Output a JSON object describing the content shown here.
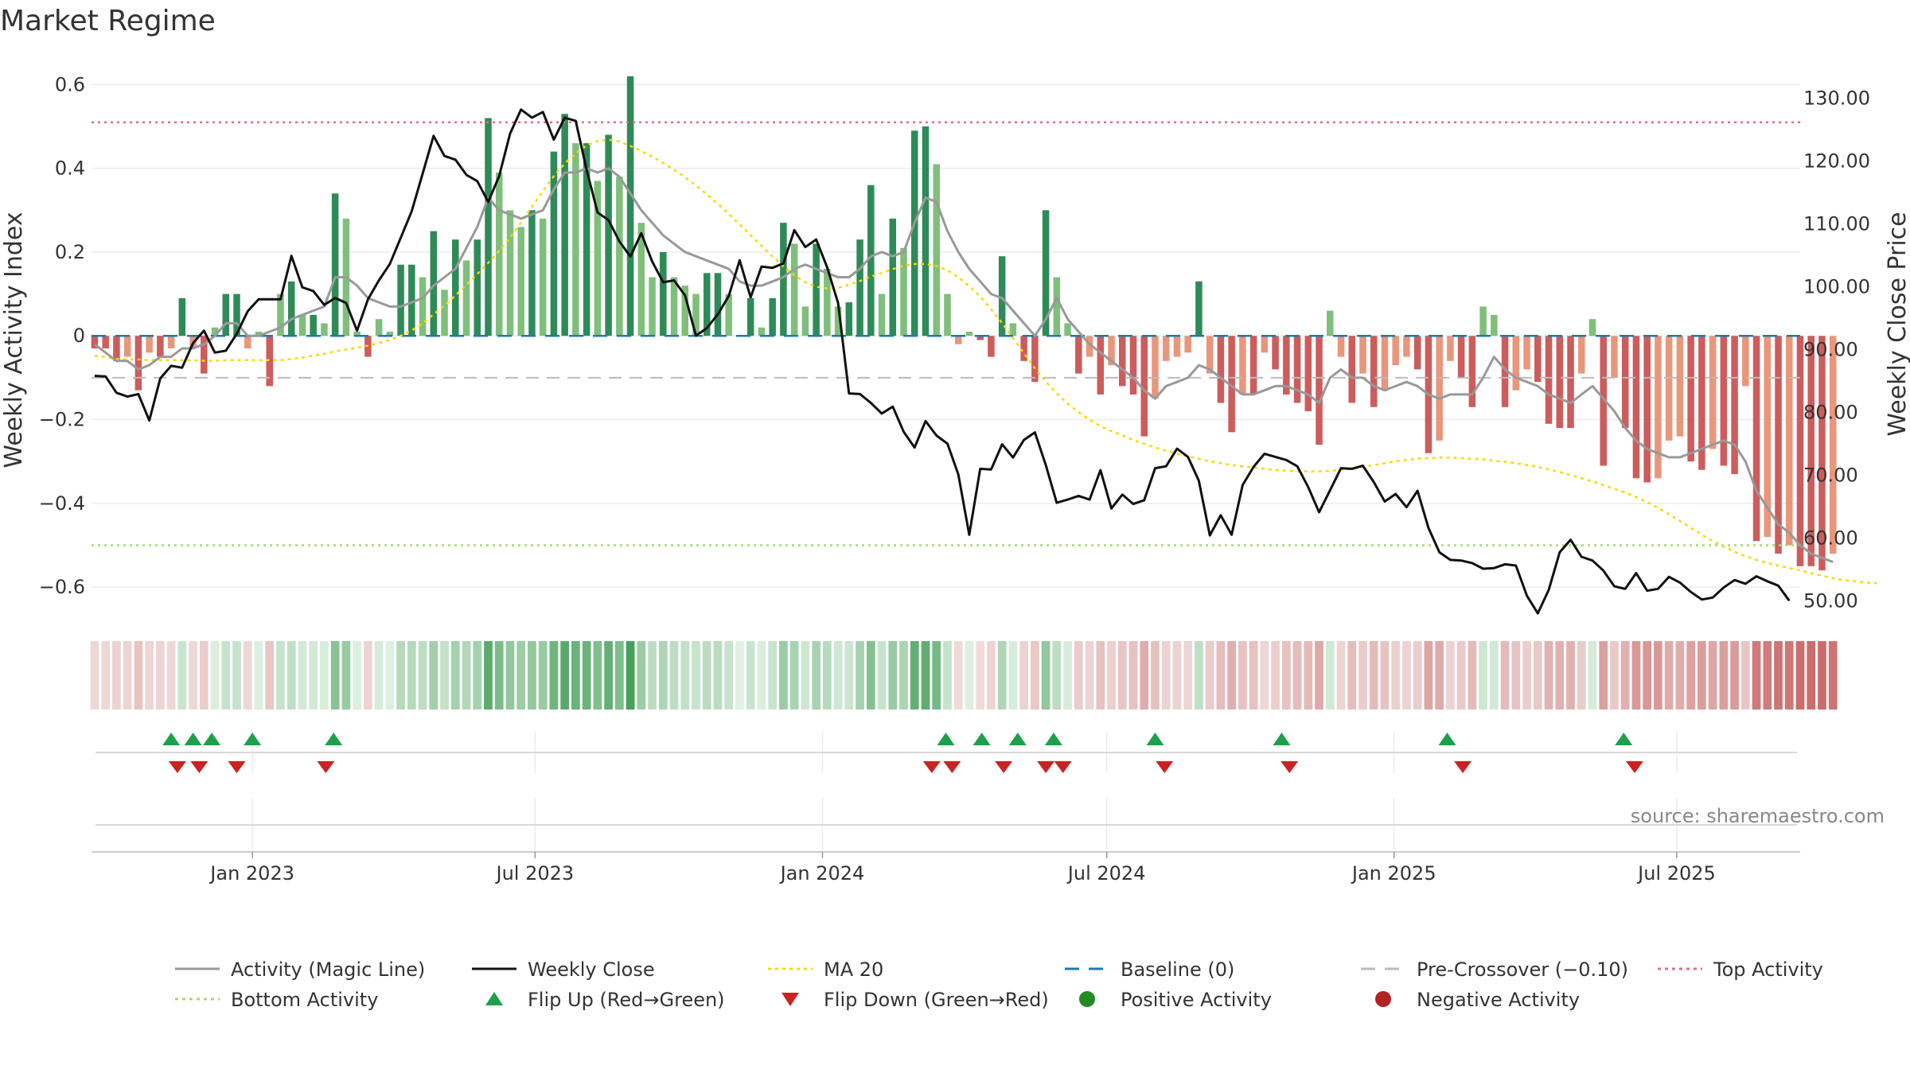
{
  "chart_data": {
    "type": "bar",
    "title": "Market Regime",
    "ylabel_left": "Weekly Activity Index",
    "ylabel_right": "Weekly Close Price",
    "source": "source: sharemaestro.com",
    "ylim_left": [
      -0.67,
      0.65
    ],
    "ylim_right": [
      47.5,
      135.5
    ],
    "yticks_left": [
      0.6,
      0.4,
      0.2,
      0,
      -0.2,
      -0.4,
      -0.6
    ],
    "yticks_left_labels": [
      "0.6",
      "0.4",
      "0.2",
      "0",
      "−0.2",
      "−0.4",
      "−0.6"
    ],
    "yticks_right": [
      130,
      120,
      110,
      100,
      90,
      80,
      70,
      60,
      50
    ],
    "yticks_right_labels": [
      "130.00",
      "120.00",
      "110.00",
      "100.00",
      "90.00",
      "80.00",
      "70.00",
      "60.00",
      "50.00"
    ],
    "xrange": [
      "2022-09-20",
      "2025-09-18"
    ],
    "xticks": [
      {
        "date": "2023-01-01",
        "label": "Jan 2023"
      },
      {
        "date": "2023-07-01",
        "label": "Jul 2023"
      },
      {
        "date": "2024-01-01",
        "label": "Jan 2024"
      },
      {
        "date": "2024-07-01",
        "label": "Jul 2024"
      },
      {
        "date": "2025-01-01",
        "label": "Jan 2025"
      },
      {
        "date": "2025-07-01",
        "label": "Jul 2025"
      }
    ],
    "start_date": "2022-09-22",
    "week_days": 7,
    "activity": [
      -0.03,
      -0.03,
      -0.06,
      -0.05,
      -0.13,
      -0.04,
      -0.05,
      -0.03,
      0.09,
      -0.03,
      -0.09,
      0.02,
      0.1,
      0.1,
      -0.03,
      0.01,
      -0.12,
      0.1,
      0.13,
      0.05,
      0.05,
      0.03,
      0.34,
      0.28,
      0.01,
      -0.05,
      0.04,
      0.01,
      0.17,
      0.17,
      0.14,
      0.25,
      0.11,
      0.23,
      0.18,
      0.23,
      0.52,
      0.39,
      0.3,
      0.26,
      0.3,
      0.28,
      0.44,
      0.53,
      0.46,
      0.46,
      0.37,
      0.48,
      0.38,
      0.62,
      0.27,
      0.14,
      0.2,
      0.14,
      0.12,
      0.1,
      0.15,
      0.15,
      0.1,
      0.0,
      0.09,
      0.02,
      0.09,
      0.27,
      0.22,
      0.07,
      0.22,
      0.16,
      0.07,
      0.08,
      0.23,
      0.36,
      0.1,
      0.28,
      0.21,
      0.49,
      0.5,
      0.41,
      0.1,
      -0.02,
      0.01,
      -0.01,
      -0.05,
      0.19,
      0.03,
      -0.06,
      -0.11,
      0.3,
      0.14,
      0.03,
      -0.09,
      -0.05,
      -0.14,
      -0.07,
      -0.12,
      -0.14,
      -0.24,
      -0.15,
      -0.06,
      -0.05,
      -0.04,
      0.13,
      -0.09,
      -0.16,
      -0.23,
      -0.14,
      -0.14,
      -0.04,
      -0.08,
      -0.14,
      -0.16,
      -0.18,
      -0.26,
      0.06,
      -0.05,
      -0.16,
      -0.09,
      -0.17,
      -0.13,
      -0.07,
      -0.05,
      -0.08,
      -0.28,
      -0.25,
      -0.06,
      -0.1,
      -0.17,
      0.07,
      0.05,
      -0.17,
      -0.13,
      -0.08,
      -0.11,
      -0.21,
      -0.22,
      -0.22,
      -0.09,
      0.04,
      -0.31,
      -0.1,
      -0.22,
      -0.34,
      -0.35,
      -0.34,
      -0.25,
      -0.24,
      -0.3,
      -0.32,
      -0.27,
      -0.31,
      -0.33,
      -0.12,
      -0.49,
      -0.48,
      -0.52,
      -0.5,
      -0.55,
      -0.55,
      -0.56,
      -0.52
    ],
    "magic_line": [
      -0.02,
      -0.04,
      -0.06,
      -0.06,
      -0.08,
      -0.07,
      -0.05,
      -0.05,
      -0.03,
      -0.03,
      -0.02,
      0.0,
      0.03,
      0.03,
      0.0,
      0.0,
      0.01,
      0.02,
      0.04,
      0.05,
      0.06,
      0.07,
      0.14,
      0.14,
      0.12,
      0.09,
      0.08,
      0.07,
      0.07,
      0.08,
      0.09,
      0.12,
      0.14,
      0.16,
      0.21,
      0.26,
      0.33,
      0.3,
      0.29,
      0.28,
      0.29,
      0.3,
      0.35,
      0.39,
      0.39,
      0.4,
      0.39,
      0.4,
      0.38,
      0.34,
      0.3,
      0.27,
      0.24,
      0.22,
      0.2,
      0.19,
      0.18,
      0.17,
      0.16,
      0.13,
      0.12,
      0.12,
      0.13,
      0.14,
      0.16,
      0.17,
      0.16,
      0.15,
      0.14,
      0.14,
      0.16,
      0.19,
      0.2,
      0.19,
      0.2,
      0.27,
      0.33,
      0.32,
      0.25,
      0.2,
      0.16,
      0.13,
      0.1,
      0.09,
      0.06,
      0.03,
      0.0,
      0.04,
      0.09,
      0.04,
      0.01,
      -0.02,
      -0.04,
      -0.06,
      -0.08,
      -0.1,
      -0.13,
      -0.15,
      -0.12,
      -0.11,
      -0.1,
      -0.07,
      -0.08,
      -0.1,
      -0.12,
      -0.14,
      -0.14,
      -0.13,
      -0.12,
      -0.12,
      -0.13,
      -0.14,
      -0.16,
      -0.1,
      -0.08,
      -0.1,
      -0.1,
      -0.12,
      -0.13,
      -0.12,
      -0.11,
      -0.12,
      -0.14,
      -0.15,
      -0.14,
      -0.14,
      -0.14,
      -0.1,
      -0.05,
      -0.08,
      -0.1,
      -0.11,
      -0.12,
      -0.14,
      -0.15,
      -0.16,
      -0.14,
      -0.12,
      -0.15,
      -0.18,
      -0.22,
      -0.25,
      -0.27,
      -0.28,
      -0.29,
      -0.29,
      -0.28,
      -0.27,
      -0.26,
      -0.25,
      -0.26,
      -0.3,
      -0.37,
      -0.41,
      -0.45,
      -0.47,
      -0.5,
      -0.52,
      -0.53,
      -0.54
    ],
    "weekly_close": [
      85.8,
      85.7,
      83.1,
      82.5,
      82.9,
      78.7,
      85.4,
      87.4,
      87.1,
      91.0,
      93.0,
      89.5,
      89.8,
      92.5,
      96.1,
      98.0,
      98.0,
      98.0,
      104.9,
      99.9,
      99.3,
      97.1,
      98.2,
      97.4,
      93.0,
      98.0,
      101.0,
      103.6,
      107.8,
      112.0,
      118.0,
      124.0,
      120.8,
      120.2,
      117.8,
      116.8,
      113.5,
      117.6,
      124.4,
      128.2,
      126.9,
      127.8,
      123.4,
      126.9,
      126.4,
      118.6,
      111.8,
      110.6,
      107.2,
      104.8,
      108.5,
      104.0,
      100.7,
      101.0,
      98.6,
      92.2,
      93.4,
      95.6,
      98.5,
      104.2,
      98.3,
      103.2,
      103.0,
      103.7,
      109.0,
      106.3,
      107.5,
      103.1,
      97.4,
      83.0,
      82.9,
      81.5,
      79.8,
      80.9,
      76.9,
      74.4,
      78.6,
      76.3,
      75.0,
      70.1,
      60.5,
      71.0,
      70.9,
      74.9,
      72.8,
      75.6,
      76.8,
      71.6,
      65.6,
      66.1,
      66.7,
      66.1,
      70.8,
      64.7,
      66.9,
      65.4,
      66.0,
      71.1,
      71.4,
      74.2,
      72.9,
      69.1,
      60.4,
      63.6,
      60.5,
      68.4,
      71.3,
      73.4,
      72.9,
      72.4,
      71.4,
      68.1,
      64.1,
      67.6,
      71.1,
      71.0,
      71.5,
      68.9,
      65.8,
      67.0,
      64.9,
      67.5,
      61.6,
      57.7,
      56.5,
      56.4,
      56.0,
      55.1,
      55.2,
      55.8,
      55.6,
      50.8,
      48.0,
      51.7,
      57.7,
      59.7,
      57.0,
      56.4,
      54.8,
      52.3,
      51.9,
      54.4,
      51.6,
      51.9,
      53.8,
      52.9,
      51.4,
      50.2,
      50.5,
      52.1,
      53.3,
      52.7,
      53.9,
      53.1,
      52.4,
      50.0
    ],
    "ma20": [
      89.0,
      88.8,
      88.5,
      88.4,
      88.4,
      88.3,
      88.3,
      88.3,
      88.3,
      88.3,
      88.2,
      88.2,
      88.3,
      88.3,
      88.3,
      88.3,
      88.3,
      88.3,
      88.5,
      88.7,
      89.0,
      89.3,
      89.7,
      90.0,
      90.3,
      90.6,
      91.0,
      91.5,
      92.2,
      93.0,
      94.2,
      95.6,
      97.0,
      98.6,
      100.3,
      102.0,
      103.8,
      105.7,
      107.8,
      110.2,
      112.7,
      115.2,
      117.6,
      119.6,
      121.2,
      122.5,
      123.2,
      123.4,
      123.1,
      122.4,
      121.6,
      120.7,
      119.7,
      118.6,
      117.4,
      116.1,
      114.7,
      113.2,
      111.6,
      109.9,
      108.2,
      106.5,
      104.8,
      103.2,
      101.8,
      100.7,
      100.0,
      99.7,
      99.8,
      100.3,
      100.9,
      101.6,
      102.2,
      102.8,
      103.3,
      103.6,
      103.6,
      103.3,
      102.6,
      101.5,
      100.1,
      98.4,
      96.4,
      94.2,
      91.8,
      89.4,
      87.0,
      84.9,
      83.0,
      81.4,
      80.0,
      78.8,
      77.8,
      77.0,
      76.3,
      75.6,
      75.0,
      74.4,
      73.9,
      73.4,
      73.0,
      72.6,
      72.2,
      71.9,
      71.6,
      71.4,
      71.2,
      71.0,
      70.8,
      70.7,
      70.6,
      70.6,
      70.6,
      70.7,
      70.8,
      71.0,
      71.3,
      71.6,
      71.9,
      72.2,
      72.4,
      72.6,
      72.7,
      72.8,
      72.8,
      72.7,
      72.6,
      72.5,
      72.3,
      72.1,
      71.9,
      71.6,
      71.3,
      70.9,
      70.5,
      70.0,
      69.5,
      69.0,
      68.4,
      67.8,
      67.2,
      66.5,
      65.7,
      64.8,
      63.8,
      62.7,
      61.6,
      60.5,
      59.5,
      58.6,
      57.8,
      57.1,
      56.5,
      56.0,
      55.6,
      55.2,
      54.8,
      54.4,
      54.0,
      53.6,
      53.3,
      53.1,
      52.9,
      52.8
    ],
    "flip_up_dates": [
      "2022-11-10",
      "2022-11-24",
      "2022-12-06",
      "2023-01-01",
      "2023-02-22",
      "2024-03-20",
      "2024-04-12",
      "2024-05-05",
      "2024-05-28",
      "2024-08-01",
      "2024-10-21",
      "2025-02-04",
      "2025-05-28"
    ],
    "flip_down_dates": [
      "2022-11-14",
      "2022-11-28",
      "2022-12-22",
      "2023-02-17",
      "2024-03-11",
      "2024-03-24",
      "2024-04-26",
      "2024-05-23",
      "2024-06-03",
      "2024-08-07",
      "2024-10-26",
      "2025-02-14",
      "2025-06-04"
    ],
    "bars_series": [
      "Positive Activity",
      "Negative Activity"
    ],
    "top_activity": 0.51,
    "bottom_activity": -0.5,
    "baseline": 0,
    "pre_crossover": -0.1,
    "colors": {
      "pos_dark": "#2e8b57",
      "pos_light": "#7fbf7b",
      "neg_dark": "#cd5c5c",
      "neg_light": "#e9967a",
      "magic": "#999999",
      "close": "#111111",
      "ma": "#ffd700",
      "baseline": "#1f77b4",
      "pre": "#bbbbbb",
      "top": "#e07080",
      "bottom": "#a8d870",
      "flip_up": "#1ea04a",
      "flip_down": "#cc2222",
      "pos_dot": "#228b22",
      "neg_dot": "#b22222"
    },
    "legend": [
      {
        "key": "magic",
        "label": "Activity (Magic Line)",
        "style": "solid"
      },
      {
        "key": "close",
        "label": "Weekly Close",
        "style": "solid"
      },
      {
        "key": "ma",
        "label": "MA 20",
        "style": "dotted"
      },
      {
        "key": "baseline",
        "label": "Baseline (0)",
        "style": "dashed"
      },
      {
        "key": "pre",
        "label": "Pre-Crossover (−0.10)",
        "style": "dashed"
      },
      {
        "key": "top",
        "label": "Top Activity",
        "style": "dotted"
      },
      {
        "key": "bottom",
        "label": "Bottom Activity",
        "style": "dotted"
      },
      {
        "key": "flip_up",
        "label": "Flip Up (Red→Green)",
        "style": "tri-up"
      },
      {
        "key": "flip_down",
        "label": "Flip Down (Green→Red)",
        "style": "tri-down"
      },
      {
        "key": "pos_dot",
        "label": "Positive Activity",
        "style": "dot"
      },
      {
        "key": "neg_dot",
        "label": "Negative Activity",
        "style": "dot"
      }
    ]
  }
}
